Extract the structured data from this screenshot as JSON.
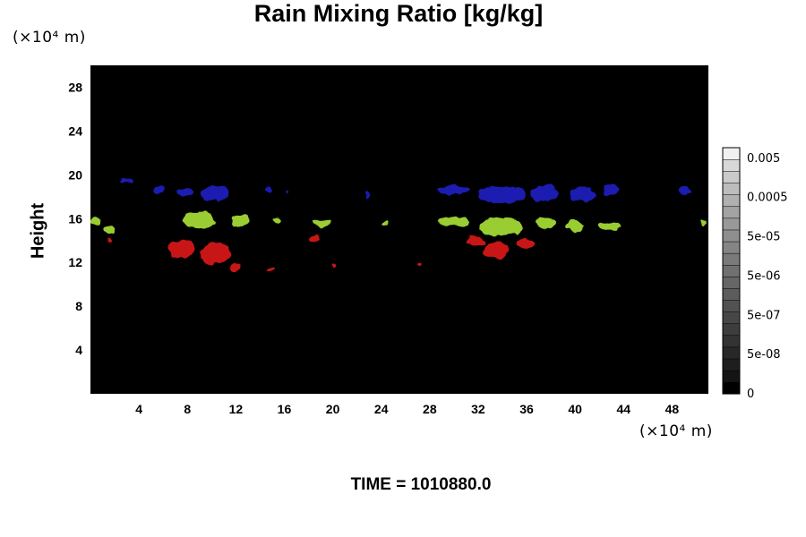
{
  "chart_data": {
    "type": "heatmap",
    "title": "Rain Mixing Ratio [kg/kg]",
    "ylabel": "Height",
    "xlabel": "",
    "x_unit": "(×10⁴ m)",
    "y_unit": "(×10⁴ m)",
    "annotation": "TIME = 1010880.0",
    "xlim": [
      0,
      51
    ],
    "ylim": [
      0,
      30
    ],
    "x_ticks": [
      4,
      8,
      12,
      16,
      20,
      24,
      28,
      32,
      36,
      40,
      44,
      48
    ],
    "y_ticks": [
      4,
      8,
      12,
      16,
      20,
      24,
      28
    ],
    "grid": false,
    "background_color": "#000000",
    "colorbar": {
      "position": "right",
      "labels": [
        "0.005",
        "0.0005",
        "5e-05",
        "5e-06",
        "5e-07",
        "5e-08",
        "0"
      ],
      "colors": [
        "#000000",
        "#141414",
        "#1e1e1e",
        "#282828",
        "#333333",
        "#3d3d3d",
        "#474747",
        "#525252",
        "#5c5c5c",
        "#666666",
        "#707070",
        "#7a7a7a",
        "#858585",
        "#8f8f8f",
        "#999999",
        "#a3a3a3",
        "#b0b0b0",
        "#bdbdbd",
        "#cacaca",
        "#d8d8d8",
        "#f0f0f0"
      ]
    },
    "series": [
      {
        "layer": "upper",
        "color": "#1a1ab0",
        "blobs": [
          {
            "x": 3.1,
            "y": 19.4,
            "w": 1.2,
            "h": 0.5
          },
          {
            "x": 5.7,
            "y": 18.6,
            "w": 1.0,
            "h": 1.0
          },
          {
            "x": 7.8,
            "y": 18.4,
            "w": 1.2,
            "h": 0.9
          },
          {
            "x": 10.2,
            "y": 18.3,
            "w": 2.6,
            "h": 1.3
          },
          {
            "x": 14.7,
            "y": 18.6,
            "w": 0.6,
            "h": 0.5
          },
          {
            "x": 16.1,
            "y": 18.5,
            "w": 0.3,
            "h": 0.4
          },
          {
            "x": 22.9,
            "y": 18.1,
            "w": 0.4,
            "h": 0.6
          },
          {
            "x": 30.0,
            "y": 18.6,
            "w": 2.8,
            "h": 0.9
          },
          {
            "x": 34.0,
            "y": 18.2,
            "w": 4.0,
            "h": 1.6
          },
          {
            "x": 37.5,
            "y": 18.3,
            "w": 2.2,
            "h": 1.5
          },
          {
            "x": 40.5,
            "y": 18.2,
            "w": 2.2,
            "h": 1.3
          },
          {
            "x": 43.0,
            "y": 18.6,
            "w": 1.3,
            "h": 1.0
          },
          {
            "x": 49.0,
            "y": 18.6,
            "w": 0.9,
            "h": 0.7
          }
        ]
      },
      {
        "layer": "middle",
        "color": "#9acd32",
        "blobs": [
          {
            "x": 0.4,
            "y": 15.8,
            "w": 0.7,
            "h": 0.8
          },
          {
            "x": 1.6,
            "y": 15.0,
            "w": 1.0,
            "h": 0.7
          },
          {
            "x": 9.0,
            "y": 15.9,
            "w": 2.6,
            "h": 1.6
          },
          {
            "x": 12.4,
            "y": 15.8,
            "w": 1.5,
            "h": 1.2
          },
          {
            "x": 15.4,
            "y": 15.8,
            "w": 0.5,
            "h": 0.5
          },
          {
            "x": 19.1,
            "y": 15.6,
            "w": 1.5,
            "h": 0.6
          },
          {
            "x": 24.4,
            "y": 15.5,
            "w": 0.6,
            "h": 0.5
          },
          {
            "x": 30.0,
            "y": 15.7,
            "w": 2.8,
            "h": 0.9
          },
          {
            "x": 33.9,
            "y": 15.3,
            "w": 3.6,
            "h": 1.7
          },
          {
            "x": 37.5,
            "y": 15.6,
            "w": 1.6,
            "h": 1.0
          },
          {
            "x": 40.0,
            "y": 15.3,
            "w": 1.5,
            "h": 1.0
          },
          {
            "x": 42.8,
            "y": 15.3,
            "w": 1.9,
            "h": 0.7
          },
          {
            "x": 50.6,
            "y": 15.6,
            "w": 0.4,
            "h": 0.6
          }
        ]
      },
      {
        "layer": "lower",
        "color": "#c81414",
        "blobs": [
          {
            "x": 1.6,
            "y": 14.0,
            "w": 0.6,
            "h": 0.5
          },
          {
            "x": 7.5,
            "y": 13.2,
            "w": 2.3,
            "h": 1.6
          },
          {
            "x": 10.3,
            "y": 12.8,
            "w": 2.6,
            "h": 2.0
          },
          {
            "x": 12.0,
            "y": 11.6,
            "w": 1.0,
            "h": 0.8
          },
          {
            "x": 14.8,
            "y": 11.3,
            "w": 0.6,
            "h": 0.3
          },
          {
            "x": 18.5,
            "y": 14.2,
            "w": 0.9,
            "h": 0.8
          },
          {
            "x": 20.1,
            "y": 11.7,
            "w": 0.3,
            "h": 0.3
          },
          {
            "x": 27.1,
            "y": 11.8,
            "w": 0.3,
            "h": 0.3
          },
          {
            "x": 31.8,
            "y": 13.9,
            "w": 1.5,
            "h": 0.9
          },
          {
            "x": 33.5,
            "y": 13.1,
            "w": 2.2,
            "h": 1.5
          },
          {
            "x": 35.9,
            "y": 13.7,
            "w": 1.5,
            "h": 0.9
          }
        ]
      }
    ]
  }
}
